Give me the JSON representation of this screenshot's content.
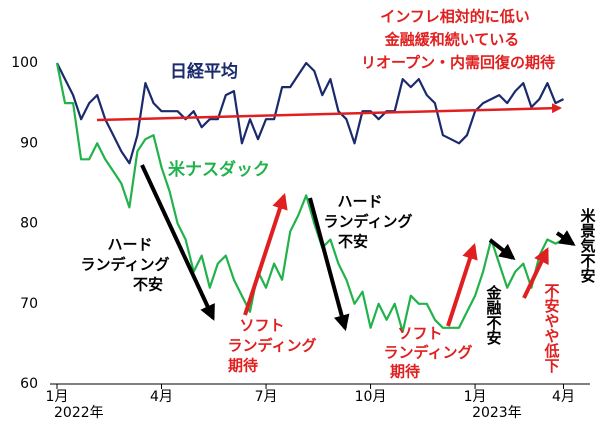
{
  "chart_data": {
    "type": "line",
    "categories": [
      "1月",
      null,
      null,
      null,
      null,
      null,
      null,
      null,
      null,
      null,
      null,
      null,
      null,
      "4月",
      null,
      null,
      null,
      null,
      null,
      null,
      null,
      null,
      null,
      null,
      null,
      null,
      "7月",
      null,
      null,
      null,
      null,
      null,
      null,
      null,
      null,
      null,
      null,
      null,
      null,
      "10月",
      null,
      null,
      null,
      null,
      null,
      null,
      null,
      null,
      null,
      null,
      null,
      null,
      "1月",
      null,
      null,
      null,
      null,
      null,
      null,
      null,
      null,
      null,
      null,
      "4月"
    ],
    "x_sublabels": [
      "2022年",
      null,
      null,
      null,
      null,
      null,
      null,
      null,
      null,
      null,
      null,
      null,
      null,
      null,
      null,
      null,
      null,
      null,
      null,
      null,
      null,
      null,
      null,
      null,
      null,
      null,
      null,
      null,
      null,
      null,
      null,
      null,
      null,
      null,
      null,
      null,
      null,
      null,
      null,
      null,
      null,
      null,
      null,
      null,
      null,
      null,
      null,
      null,
      null,
      null,
      null,
      null,
      "2023年",
      null,
      null,
      null,
      null,
      null,
      null,
      null,
      null,
      null,
      null,
      null
    ],
    "series": [
      {
        "name": "日経平均",
        "color": "#1a2a6c",
        "values": [
          100,
          98,
          96,
          93,
          95,
          96,
          93,
          91,
          89,
          87.5,
          91,
          97.5,
          95,
          94,
          94,
          94,
          93,
          94,
          92,
          93,
          93,
          96,
          96.5,
          90,
          93,
          90.5,
          93,
          93,
          97,
          97,
          98.5,
          100,
          99,
          96,
          98,
          94,
          93,
          90,
          94,
          94,
          93,
          94,
          94,
          98,
          97,
          98,
          96,
          95,
          91,
          90.5,
          90,
          91,
          94,
          95,
          95.5,
          96,
          95,
          96.5,
          97.5,
          94.5,
          95.5,
          97.5,
          95,
          95.5
        ]
      },
      {
        "name": "米ナスダック",
        "color": "#22b24c",
        "values": [
          100,
          95,
          95,
          88,
          88,
          90,
          88,
          86.5,
          85,
          82,
          89,
          90.5,
          91,
          87,
          84,
          80,
          78,
          74,
          76,
          72,
          75,
          76,
          73,
          71,
          69,
          74,
          72,
          75,
          73,
          79,
          81,
          83.5,
          80,
          77,
          78,
          75,
          73,
          70,
          71.5,
          67,
          70,
          68,
          70,
          66.5,
          71,
          70,
          70,
          68,
          67,
          67,
          67,
          69,
          71,
          74,
          78,
          75,
          72,
          74,
          75,
          72,
          76,
          78,
          77.5,
          78
        ]
      }
    ],
    "ylim": [
      60,
      100
    ],
    "yticks": [
      60,
      70,
      80,
      90,
      100
    ],
    "grid": false,
    "annotations": {
      "policy": [
        "インフレ相対的に低い",
        "金融緩和続いている",
        "リオープン・内需回復の期待"
      ],
      "hard1": [
        "ハード",
        "ランディング",
        "不安"
      ],
      "soft1": [
        "ソフト",
        "ランディング",
        "期待"
      ],
      "hard2": [
        "ハード",
        "ランディング",
        "不安"
      ],
      "soft2": [
        "ソフト",
        "ランディング",
        "期待"
      ],
      "finance": "金融不安",
      "easing": "不安やや低下",
      "us": "米景気不安"
    }
  }
}
